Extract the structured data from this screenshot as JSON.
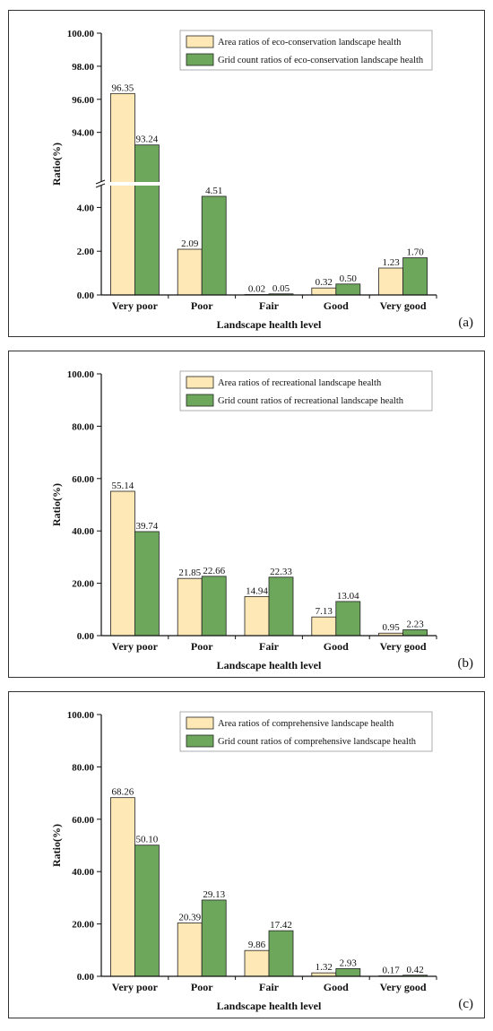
{
  "colors": {
    "area": "#fde8b6",
    "grid": "#6ca75c",
    "stroke": "#222222"
  },
  "chart_data": [
    {
      "type": "bar",
      "panel_label": "(a)",
      "xlabel": "Landscape health level",
      "ylabel": "Ratio(%)",
      "categories": [
        "Very poor",
        "Poor",
        "Fair",
        "Good",
        "Very good"
      ],
      "y_axis_break": true,
      "ylim_lower": [
        0,
        5
      ],
      "ylim_upper": [
        91,
        100
      ],
      "yticks_lower": [
        "0.00",
        "2.00",
        "4.00"
      ],
      "yticks_upper": [
        "94.00",
        "96.00",
        "98.00",
        "100.00"
      ],
      "series": [
        {
          "name": "Area ratios of eco-conservation landscape health",
          "values": [
            96.35,
            2.09,
            0.02,
            0.32,
            1.23
          ],
          "labels": [
            "96.35",
            "2.09",
            "0.02",
            "0.32",
            "1.23"
          ]
        },
        {
          "name": "Grid count ratios of eco-conservation landscape health",
          "values": [
            93.24,
            4.51,
            0.05,
            0.5,
            1.7
          ],
          "labels": [
            "93.24",
            "4.51",
            "0.05",
            "0.50",
            "1.70"
          ]
        }
      ]
    },
    {
      "type": "bar",
      "panel_label": "(b)",
      "xlabel": "Landscape health level",
      "ylabel": "Ratio(%)",
      "categories": [
        "Very poor",
        "Poor",
        "Fair",
        "Good",
        "Very good"
      ],
      "ylim": [
        0,
        100
      ],
      "yticks": [
        "0.00",
        "20.00",
        "40.00",
        "60.00",
        "80.00",
        "100.00"
      ],
      "series": [
        {
          "name": "Area ratios of recreational landscape health",
          "values": [
            55.14,
            21.85,
            14.94,
            7.13,
            0.95
          ],
          "labels": [
            "55.14",
            "21.85",
            "14.94",
            "7.13",
            "0.95"
          ]
        },
        {
          "name": "Grid count ratios of recreational landscape health",
          "values": [
            39.74,
            22.66,
            22.33,
            13.04,
            2.23
          ],
          "labels": [
            "39.74",
            "22.66",
            "22.33",
            "13.04",
            "2.23"
          ]
        }
      ]
    },
    {
      "type": "bar",
      "panel_label": "(c)",
      "xlabel": "Landscape health level",
      "ylabel": "Ratio(%)",
      "categories": [
        "Very poor",
        "Poor",
        "Fair",
        "Good",
        "Very good"
      ],
      "ylim": [
        0,
        100
      ],
      "yticks": [
        "0.00",
        "20.00",
        "40.00",
        "60.00",
        "80.00",
        "100.00"
      ],
      "series": [
        {
          "name": "Area ratios of comprehensive landscape health",
          "values": [
            68.26,
            20.39,
            9.86,
            1.32,
            0.17
          ],
          "labels": [
            "68.26",
            "20.39",
            "9.86",
            "1.32",
            "0.17"
          ]
        },
        {
          "name": "Grid count ratios of comprehensive landscape health",
          "values": [
            50.1,
            29.13,
            17.42,
            2.93,
            0.42
          ],
          "labels": [
            "50.10",
            "29.13",
            "17.42",
            "2.93",
            "0.42"
          ]
        }
      ]
    }
  ]
}
